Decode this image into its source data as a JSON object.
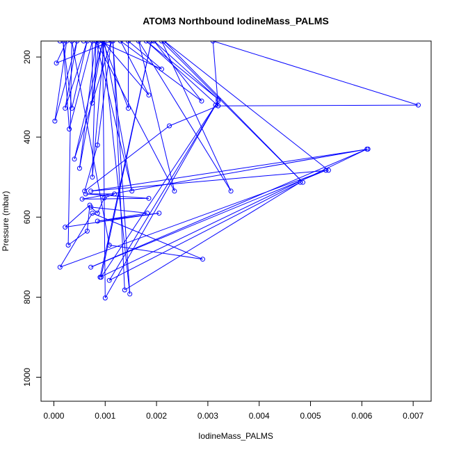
{
  "chart_data": {
    "type": "line",
    "title": "ATOM3 Northbound IodineMass_PALMS",
    "xlabel": "IodineMass_PALMS",
    "ylabel": "Pressure (mbar)",
    "xlim": [
      -0.00025,
      0.00735
    ],
    "ylim": [
      1060,
      160
    ],
    "y_reversed": true,
    "x_ticks": [
      0,
      0.001,
      0.002,
      0.003,
      0.004,
      0.005,
      0.006,
      0.007
    ],
    "x_tick_labels": [
      "0.000",
      "0.001",
      "0.002",
      "0.003",
      "0.004",
      "0.005",
      "0.006",
      "0.007"
    ],
    "y_ticks": [
      200,
      400,
      600,
      800,
      1000
    ],
    "y_tick_labels": [
      "200",
      "400",
      "600",
      "800",
      "1000"
    ],
    "series_color": "#0000ff",
    "marker": "open-circle",
    "grid": false,
    "legend": "none",
    "series": [
      {
        "points": [
          [
            0.00012,
            160
          ],
          [
            0.00035,
            160
          ],
          [
            0.00058,
            160
          ],
          [
            0.00082,
            160
          ],
          [
            0.00112,
            160
          ],
          [
            5e-05,
            215
          ],
          [
            0.00025,
            160
          ],
          [
            2e-05,
            360
          ],
          [
            0.00045,
            160
          ],
          [
            0.00022,
            328
          ],
          [
            0.00065,
            160
          ],
          [
            0.00035,
            328
          ],
          [
            0.00018,
            160
          ],
          [
            0.0003,
            380
          ],
          [
            0.00075,
            160
          ],
          [
            0.00075,
            315
          ],
          [
            0.00088,
            160
          ],
          [
            0.0021,
            230
          ],
          [
            0.00145,
            160
          ],
          [
            0.00145,
            328
          ],
          [
            0.00095,
            160
          ],
          [
            0.00185,
            295
          ],
          [
            0.0013,
            160
          ],
          [
            0.00288,
            310
          ],
          [
            0.00195,
            160
          ],
          [
            0.0032,
            305
          ],
          [
            0.0018,
            160
          ],
          [
            0.0032,
            322
          ],
          [
            0.0031,
            160
          ],
          [
            0.0071,
            320
          ],
          [
            0.0032,
            322
          ],
          [
            0.00225,
            372
          ],
          [
            0.0006,
            535
          ],
          [
            0.00085,
            420
          ],
          [
            0.00112,
            160
          ],
          [
            0.0004,
            455
          ],
          [
            0.00095,
            160
          ],
          [
            0.0005,
            478
          ],
          [
            0.00082,
            160
          ],
          [
            0.00075,
            500
          ],
          [
            0.00098,
            160
          ],
          [
            0.00152,
            535
          ],
          [
            0.00082,
            160
          ],
          [
            0.00235,
            535
          ],
          [
            0.00165,
            160
          ],
          [
            0.00345,
            535
          ],
          [
            0.0021,
            160
          ],
          [
            0.00485,
            513
          ],
          [
            0.00215,
            160
          ],
          [
            0.00535,
            483
          ],
          [
            0.00072,
            535
          ],
          [
            0.00612,
            430
          ],
          [
            0.00055,
            555
          ],
          [
            0.00185,
            553
          ],
          [
            0.00062,
            542
          ],
          [
            0.00118,
            542
          ],
          [
            0.00098,
            552
          ],
          [
            0.00085,
            590
          ],
          [
            0.00072,
            575
          ],
          [
            0.00182,
            590
          ],
          [
            0.00085,
            610
          ],
          [
            0.00205,
            590
          ],
          [
            0.00022,
            625
          ],
          [
            0.0007,
            570
          ],
          [
            0.00065,
            635
          ],
          [
            0.00028,
            670
          ],
          [
            0.00035,
            160
          ],
          [
            0.00108,
            670
          ],
          [
            0.0029,
            705
          ],
          [
            0.00075,
            590
          ],
          [
            0.00012,
            725
          ],
          [
            0.0053,
            483
          ],
          [
            0.00072,
            725
          ],
          [
            0.0061,
            430
          ],
          [
            0.0009,
            750
          ],
          [
            0.0019,
            160
          ],
          [
            0.00092,
            750
          ],
          [
            0.0032,
            310
          ],
          [
            0.00108,
            758
          ],
          [
            0.0048,
            513
          ],
          [
            0.00138,
            782
          ],
          [
            0.00115,
            160
          ],
          [
            0.00148,
            792
          ],
          [
            0.00095,
            160
          ],
          [
            0.001,
            802
          ],
          [
            0.00315,
            320
          ]
        ]
      }
    ]
  }
}
